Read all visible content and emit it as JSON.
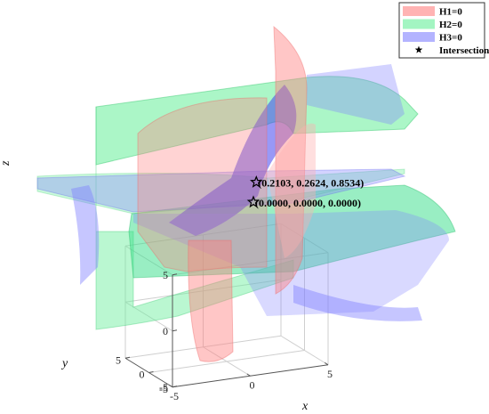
{
  "chart_data": {
    "type": "surface3d",
    "title": "",
    "axes": {
      "x": {
        "label": "x",
        "range": [
          -5,
          5
        ],
        "ticks": [
          {
            "value": -5,
            "label": "-5"
          },
          {
            "value": 0,
            "label": "0"
          },
          {
            "value": 5,
            "label": "5"
          }
        ]
      },
      "y": {
        "label": "y",
        "range": [
          -5,
          5
        ],
        "ticks": [
          {
            "value": -5,
            "label": "-5"
          },
          {
            "value": 0,
            "label": "0"
          },
          {
            "value": 5,
            "label": "5"
          }
        ]
      },
      "z": {
        "label": "z",
        "range": [
          -5,
          5
        ],
        "ticks": [
          {
            "value": -5,
            "label": "-5"
          },
          {
            "value": 0,
            "label": "0"
          },
          {
            "value": 5,
            "label": "5"
          }
        ]
      }
    },
    "box": true,
    "grid": true,
    "series": [
      {
        "name": "H1=0",
        "color": "#ff8080",
        "kind": "surface"
      },
      {
        "name": "H2=0",
        "color": "#66ee99",
        "kind": "surface"
      },
      {
        "name": "H3=0",
        "color": "#8080ff",
        "kind": "surface"
      },
      {
        "name": "Intersection",
        "kind": "points",
        "marker": "star",
        "points": [
          {
            "x": 0.2103,
            "y": 0.2624,
            "z": 0.8534,
            "label": "(0.2103, 0.2624, 0.8534)"
          },
          {
            "x": 0.0,
            "y": 0.0,
            "z": 0.0,
            "label": "(0.0000, 0.0000, 0.0000)"
          }
        ]
      }
    ],
    "legend": {
      "position": "top-right"
    }
  }
}
